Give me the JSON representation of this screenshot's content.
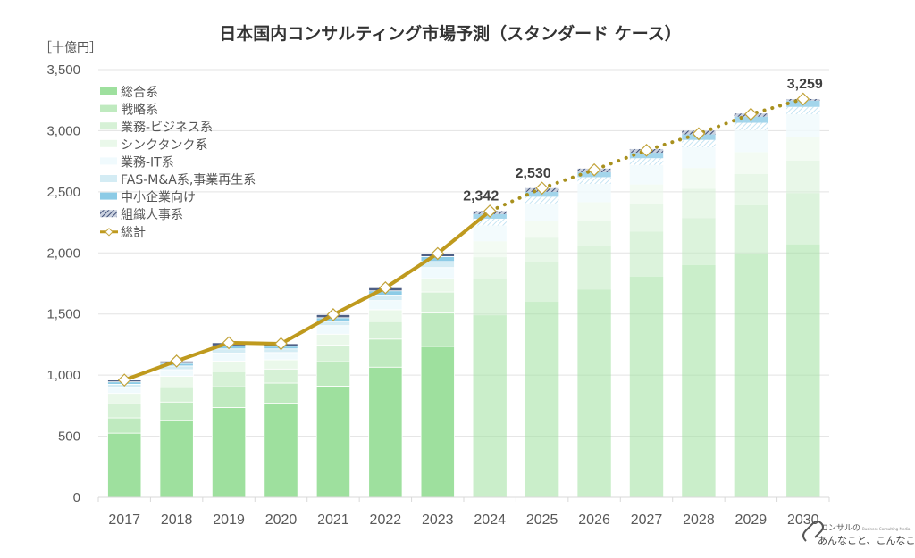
{
  "chart_data": {
    "type": "bar",
    "stacked": true,
    "title": "日本国内コンサルティング市場予測（スタンダード ケース）",
    "ylabel": "［十億円］",
    "xlabel": "",
    "ylim": [
      0,
      3500
    ],
    "yticks": [
      0,
      500,
      1000,
      1500,
      2000,
      2500,
      3000,
      3500
    ],
    "ytick_labels": [
      "0",
      "500",
      "1,000",
      "1,500",
      "2,000",
      "2,500",
      "3,000",
      "3,500"
    ],
    "grid": true,
    "legend_position": "top-left",
    "categories": [
      "2017",
      "2018",
      "2019",
      "2020",
      "2021",
      "2022",
      "2023",
      "2024",
      "2025",
      "2026",
      "2027",
      "2028",
      "2029",
      "2030"
    ],
    "forecast_from": "2024",
    "series": [
      {
        "name": "総合系",
        "color": "#9ee09e",
        "values": [
          525,
          630,
          735,
          770,
          910,
          1065,
          1235,
          1490,
          1600,
          1700,
          1805,
          1900,
          1990,
          2070
        ]
      },
      {
        "name": "戦略系",
        "color": "#bfeabf",
        "values": [
          125,
          150,
          170,
          165,
          200,
          230,
          275,
          295,
          330,
          355,
          370,
          385,
          400,
          420
        ]
      },
      {
        "name": "業務-ビジネス系",
        "color": "#d6f1d6",
        "values": [
          115,
          120,
          125,
          115,
          135,
          145,
          170,
          180,
          195,
          210,
          225,
          240,
          255,
          265
        ]
      },
      {
        "name": "シンクタンク系",
        "color": "#eaf8ea",
        "values": [
          85,
          90,
          85,
          75,
          90,
          95,
          110,
          130,
          140,
          150,
          160,
          170,
          180,
          190
        ]
      },
      {
        "name": "業務-IT系",
        "color": "#f0fafd",
        "values": [
          50,
          55,
          65,
          60,
          70,
          75,
          90,
          130,
          140,
          150,
          160,
          170,
          180,
          190
        ]
      },
      {
        "name": "FAS-M&A系,事業再生系",
        "color": "#d4ecf4",
        "values": [
          25,
          30,
          35,
          30,
          35,
          45,
          50,
          55,
          55,
          55,
          55,
          60,
          60,
          60
        ]
      },
      {
        "name": "中小企業向け",
        "color": "#8ccbe6",
        "values": [
          20,
          22,
          25,
          22,
          30,
          35,
          40,
          37,
          40,
          40,
          45,
          45,
          50,
          50
        ]
      },
      {
        "name": "組織人事系",
        "color": "#4e5f85",
        "values": [
          15,
          18,
          25,
          20,
          25,
          25,
          25,
          25,
          30,
          30,
          30,
          30,
          25,
          14
        ]
      }
    ],
    "line_series": {
      "name": "総計",
      "color": "#bf9a1e",
      "values": [
        960,
        1115,
        1265,
        1257,
        1495,
        1715,
        1995,
        2342,
        2530,
        2680,
        2840,
        2975,
        3135,
        3259
      ],
      "data_labels": {
        "2024": "2,342",
        "2025": "2,530",
        "2030": "3,259"
      }
    }
  },
  "watermark": {
    "line1": "コンサルの",
    "line2": "あんなこと、こんなこと",
    "small": "Business Consulting Media"
  }
}
